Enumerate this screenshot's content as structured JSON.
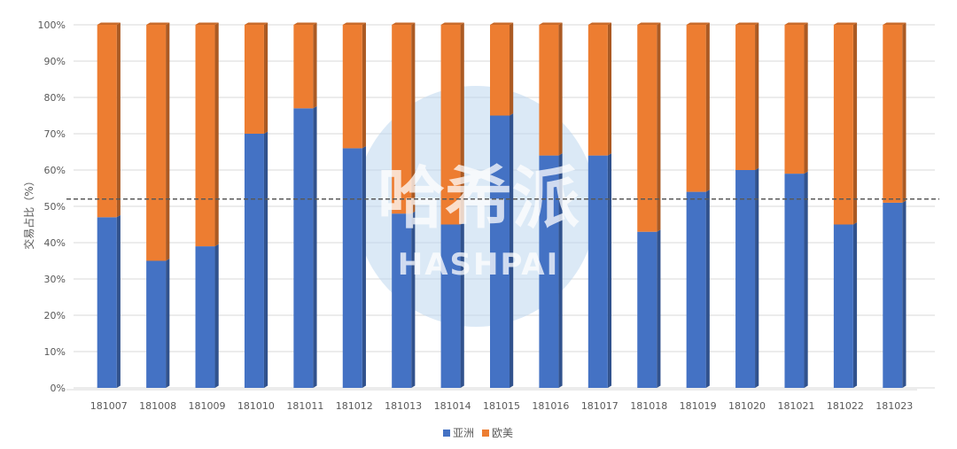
{
  "chart_data": {
    "type": "bar",
    "stacked": true,
    "percent": true,
    "categories": [
      "181007",
      "181008",
      "181009",
      "181010",
      "181011",
      "181012",
      "181013",
      "181014",
      "181015",
      "181016",
      "181017",
      "181018",
      "181019",
      "181020",
      "181021",
      "181022",
      "181023"
    ],
    "series": [
      {
        "name": "亚洲",
        "color": "#4472C4",
        "values": [
          47,
          35,
          39,
          70,
          77,
          66,
          48,
          45,
          75,
          64,
          64,
          43,
          54,
          60,
          59,
          45,
          51
        ]
      },
      {
        "name": "欧美",
        "color": "#ED7D31",
        "values": [
          53,
          65,
          61,
          30,
          23,
          34,
          52,
          55,
          25,
          36,
          36,
          57,
          46,
          40,
          41,
          55,
          49
        ]
      }
    ],
    "ylabel": "交易占比（%）",
    "xlabel": "",
    "ylim": [
      0,
      100
    ],
    "yticks": [
      "0%",
      "10%",
      "20%",
      "30%",
      "40%",
      "50%",
      "60%",
      "70%",
      "80%",
      "90%",
      "100%"
    ],
    "reference_line": 52,
    "grid": true,
    "legend": "bottom"
  },
  "watermark": {
    "cn": "哈希派",
    "en": "HASHPAI"
  }
}
